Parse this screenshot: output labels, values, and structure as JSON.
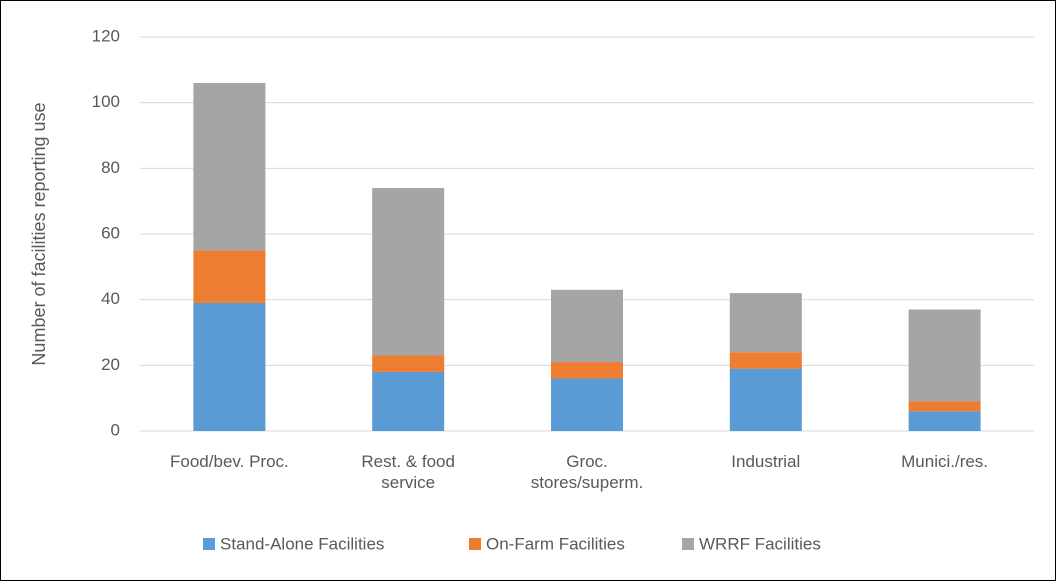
{
  "chart_data": {
    "type": "stacked_bar",
    "y_axis_label": "Number of facilities reporting use",
    "categories": [
      "Food/bev. Proc.",
      "Rest. & food service",
      "Groc. stores/superm.",
      "Industrial",
      "Munici./res."
    ],
    "series": [
      {
        "name": "Stand-Alone Facilities",
        "color": "#5b9bd5",
        "values": [
          39,
          18,
          16,
          19,
          6
        ]
      },
      {
        "name": "On-Farm Facilities",
        "color": "#ed7d31",
        "values": [
          16,
          5,
          5,
          5,
          3
        ]
      },
      {
        "name": "WRRF Facilities",
        "color": "#a5a5a5",
        "values": [
          51,
          51,
          22,
          18,
          28
        ]
      }
    ],
    "ylim": [
      0,
      120
    ],
    "yticks": [
      0,
      20,
      40,
      60,
      80,
      100,
      120
    ],
    "grid": true,
    "legend": "bottom"
  }
}
